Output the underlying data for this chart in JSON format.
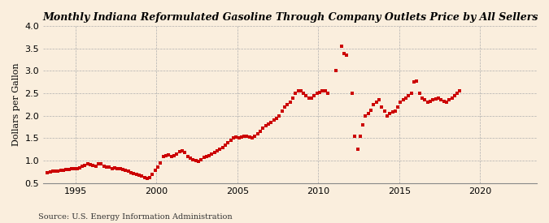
{
  "title": "Monthly Indiana Reformulated Gasoline Through Company Outlets Price by All Sellers",
  "ylabel": "Dollars per Gallon",
  "source": "Source: U.S. Energy Information Administration",
  "background_color": "#faeedd",
  "dot_color": "#cc0000",
  "xlim": [
    1993.0,
    2023.5
  ],
  "ylim": [
    0.5,
    4.0
  ],
  "yticks": [
    0.5,
    1.0,
    1.5,
    2.0,
    2.5,
    3.0,
    3.5,
    4.0
  ],
  "xticks": [
    1995,
    2000,
    2005,
    2010,
    2015,
    2020
  ],
  "dot_size": 6,
  "data": [
    [
      1993.25,
      0.73
    ],
    [
      1993.42,
      0.75
    ],
    [
      1993.58,
      0.76
    ],
    [
      1993.75,
      0.76
    ],
    [
      1993.92,
      0.77
    ],
    [
      1994.08,
      0.79
    ],
    [
      1994.25,
      0.79
    ],
    [
      1994.42,
      0.8
    ],
    [
      1994.58,
      0.8
    ],
    [
      1994.75,
      0.82
    ],
    [
      1994.92,
      0.83
    ],
    [
      1995.08,
      0.83
    ],
    [
      1995.25,
      0.84
    ],
    [
      1995.42,
      0.88
    ],
    [
      1995.58,
      0.9
    ],
    [
      1995.75,
      0.93
    ],
    [
      1995.92,
      0.92
    ],
    [
      1996.08,
      0.9
    ],
    [
      1996.25,
      0.88
    ],
    [
      1996.42,
      0.93
    ],
    [
      1996.58,
      0.93
    ],
    [
      1996.75,
      0.88
    ],
    [
      1996.92,
      0.86
    ],
    [
      1997.08,
      0.85
    ],
    [
      1997.25,
      0.83
    ],
    [
      1997.42,
      0.84
    ],
    [
      1997.58,
      0.83
    ],
    [
      1997.75,
      0.82
    ],
    [
      1997.92,
      0.8
    ],
    [
      1998.08,
      0.78
    ],
    [
      1998.25,
      0.76
    ],
    [
      1998.42,
      0.73
    ],
    [
      1998.58,
      0.72
    ],
    [
      1998.75,
      0.7
    ],
    [
      1998.92,
      0.68
    ],
    [
      1999.08,
      0.66
    ],
    [
      1999.25,
      0.63
    ],
    [
      1999.42,
      0.6
    ],
    [
      1999.58,
      0.62
    ],
    [
      1999.75,
      0.7
    ],
    [
      1999.92,
      0.78
    ],
    [
      2000.08,
      0.85
    ],
    [
      2000.25,
      0.95
    ],
    [
      2000.42,
      1.1
    ],
    [
      2000.58,
      1.12
    ],
    [
      2000.75,
      1.13
    ],
    [
      2000.92,
      1.1
    ],
    [
      2001.08,
      1.12
    ],
    [
      2001.25,
      1.15
    ],
    [
      2001.42,
      1.2
    ],
    [
      2001.58,
      1.22
    ],
    [
      2001.75,
      1.18
    ],
    [
      2001.92,
      1.1
    ],
    [
      2002.08,
      1.05
    ],
    [
      2002.25,
      1.03
    ],
    [
      2002.42,
      1.0
    ],
    [
      2002.58,
      0.98
    ],
    [
      2002.75,
      1.02
    ],
    [
      2002.92,
      1.08
    ],
    [
      2003.08,
      1.1
    ],
    [
      2003.25,
      1.12
    ],
    [
      2003.42,
      1.15
    ],
    [
      2003.58,
      1.18
    ],
    [
      2003.75,
      1.22
    ],
    [
      2003.92,
      1.25
    ],
    [
      2004.08,
      1.3
    ],
    [
      2004.25,
      1.35
    ],
    [
      2004.42,
      1.4
    ],
    [
      2004.58,
      1.45
    ],
    [
      2004.75,
      1.5
    ],
    [
      2004.92,
      1.52
    ],
    [
      2005.08,
      1.5
    ],
    [
      2005.25,
      1.52
    ],
    [
      2005.42,
      1.55
    ],
    [
      2005.58,
      1.55
    ],
    [
      2005.75,
      1.52
    ],
    [
      2005.92,
      1.5
    ],
    [
      2006.08,
      1.55
    ],
    [
      2006.25,
      1.6
    ],
    [
      2006.42,
      1.65
    ],
    [
      2006.58,
      1.72
    ],
    [
      2006.75,
      1.78
    ],
    [
      2006.92,
      1.82
    ],
    [
      2007.08,
      1.85
    ],
    [
      2007.25,
      1.9
    ],
    [
      2007.42,
      1.95
    ],
    [
      2007.58,
      2.0
    ],
    [
      2007.75,
      2.1
    ],
    [
      2007.92,
      2.2
    ],
    [
      2008.08,
      2.25
    ],
    [
      2008.25,
      2.3
    ],
    [
      2008.42,
      2.4
    ],
    [
      2008.58,
      2.5
    ],
    [
      2008.75,
      2.55
    ],
    [
      2008.92,
      2.55
    ],
    [
      2009.08,
      2.5
    ],
    [
      2009.25,
      2.45
    ],
    [
      2009.42,
      2.4
    ],
    [
      2009.58,
      2.4
    ],
    [
      2009.75,
      2.45
    ],
    [
      2009.92,
      2.5
    ],
    [
      2010.08,
      2.52
    ],
    [
      2010.25,
      2.55
    ],
    [
      2010.42,
      2.55
    ],
    [
      2010.58,
      2.5
    ],
    [
      2011.08,
      3.0
    ],
    [
      2011.42,
      3.55
    ],
    [
      2011.58,
      3.38
    ],
    [
      2011.75,
      3.35
    ],
    [
      2012.08,
      2.5
    ],
    [
      2012.25,
      1.55
    ],
    [
      2012.42,
      1.25
    ],
    [
      2012.58,
      1.55
    ],
    [
      2012.75,
      1.8
    ],
    [
      2012.92,
      2.0
    ],
    [
      2013.08,
      2.05
    ],
    [
      2013.25,
      2.12
    ],
    [
      2013.42,
      2.25
    ],
    [
      2013.58,
      2.3
    ],
    [
      2013.75,
      2.35
    ],
    [
      2013.92,
      2.2
    ],
    [
      2014.08,
      2.1
    ],
    [
      2014.25,
      2.0
    ],
    [
      2014.42,
      2.05
    ],
    [
      2014.58,
      2.08
    ],
    [
      2014.75,
      2.1
    ],
    [
      2014.92,
      2.2
    ],
    [
      2015.08,
      2.3
    ],
    [
      2015.25,
      2.35
    ],
    [
      2015.42,
      2.4
    ],
    [
      2015.58,
      2.45
    ],
    [
      2015.75,
      2.5
    ],
    [
      2015.92,
      2.75
    ],
    [
      2016.08,
      2.78
    ],
    [
      2016.25,
      2.5
    ],
    [
      2016.42,
      2.4
    ],
    [
      2016.58,
      2.35
    ],
    [
      2016.75,
      2.3
    ],
    [
      2016.92,
      2.32
    ],
    [
      2017.08,
      2.35
    ],
    [
      2017.25,
      2.38
    ],
    [
      2017.42,
      2.4
    ],
    [
      2017.58,
      2.35
    ],
    [
      2017.75,
      2.32
    ],
    [
      2017.92,
      2.3
    ],
    [
      2018.08,
      2.35
    ],
    [
      2018.25,
      2.4
    ],
    [
      2018.42,
      2.45
    ],
    [
      2018.58,
      2.5
    ],
    [
      2018.75,
      2.55
    ]
  ]
}
